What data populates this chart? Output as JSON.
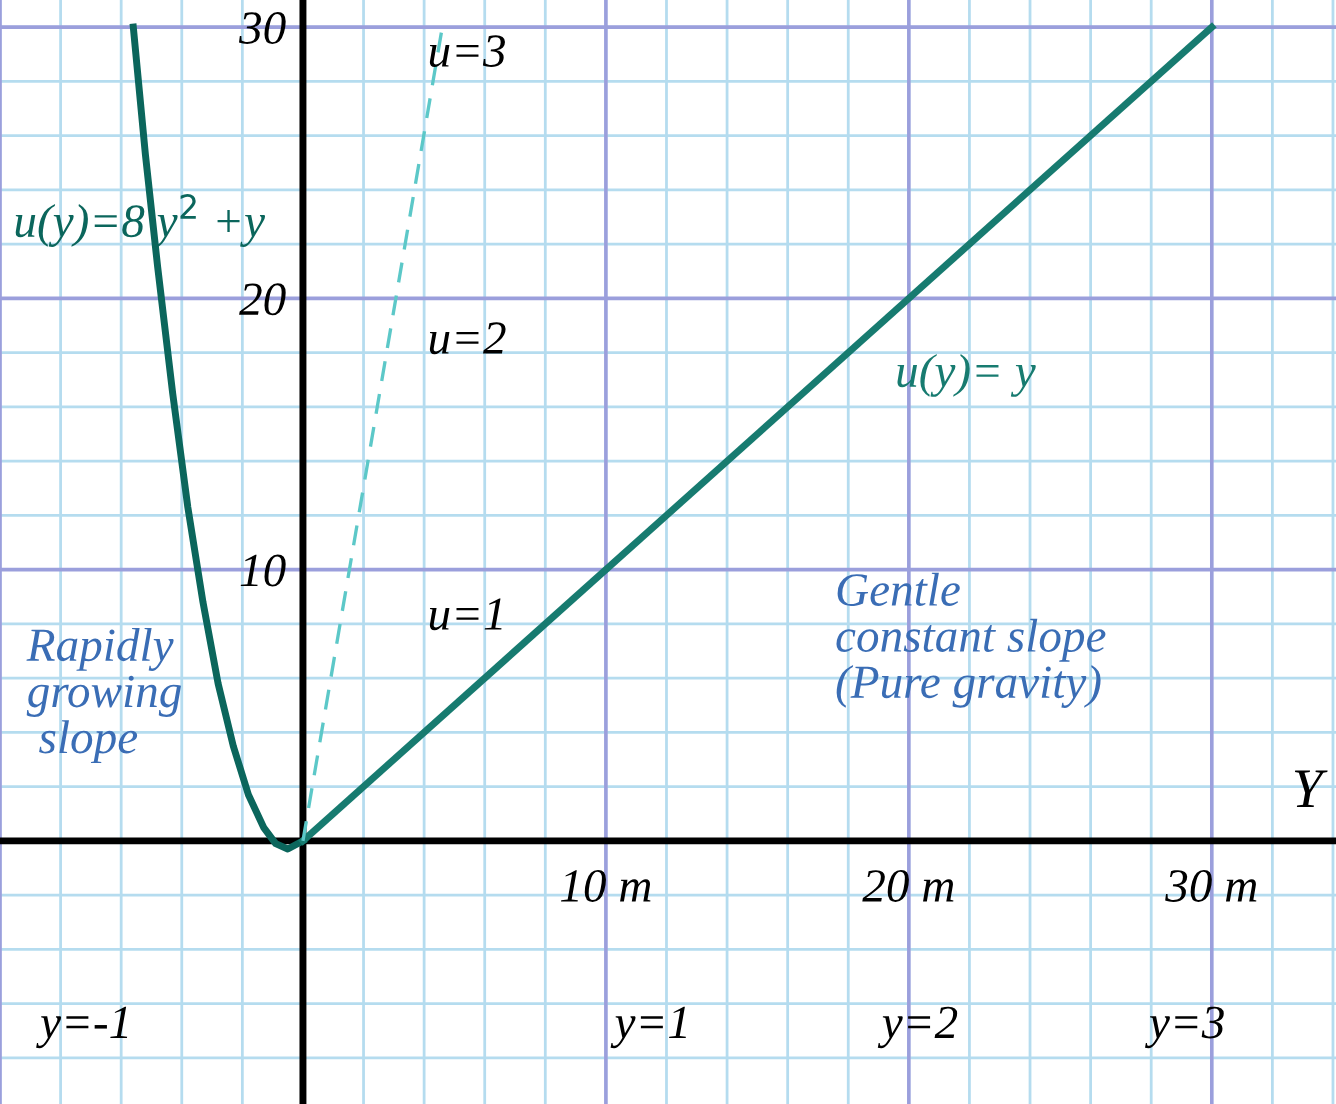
{
  "chart_data": {
    "type": "line",
    "xlabel": "Y",
    "xlim": [
      -10,
      34.1
    ],
    "ylim": [
      -9.7,
      31
    ],
    "xticks": [
      {
        "value": -10,
        "label": null
      },
      {
        "value": 0,
        "label": null
      },
      {
        "value": 10,
        "label": "10 m"
      },
      {
        "value": 20,
        "label": "20 m"
      },
      {
        "value": 30,
        "label": "30 m"
      }
    ],
    "yticks": [
      {
        "value": 0,
        "label": null
      },
      10,
      20,
      30
    ],
    "grid": true,
    "series": [
      {
        "name": "u(y)=8 y$^{2}$ +y",
        "color": "#0b665c",
        "line_style": "solid",
        "x": [
          -5.6,
          -5.2,
          -4.8,
          -4.3,
          -3.8,
          -3.3,
          -2.8,
          -2.3,
          -1.8,
          -1.3,
          -0.9,
          -0.5,
          0
        ],
        "values": [
          30,
          25.3,
          21.2,
          16.5,
          12.3,
          8.8,
          5.8,
          3.5,
          1.7,
          0.5,
          -0.1,
          -0.3,
          0
        ]
      },
      {
        "name": "u(y)= y",
        "color": "#177b70",
        "line_style": "solid",
        "x": [
          0,
          30
        ],
        "values": [
          0,
          30
        ]
      },
      {
        "color": "#5cc8c8",
        "line_style": "dashed",
        "x": [
          0,
          4.6
        ],
        "values": [
          0,
          30
        ]
      }
    ],
    "annotations": [
      "u=1",
      "u=2",
      "u=3",
      "y=-1",
      "y=1",
      "y=2",
      "y=3",
      "Rapidly\ngrowing\n slope",
      "Gentle\nconstant slope\n(Pure gravity)"
    ]
  }
}
